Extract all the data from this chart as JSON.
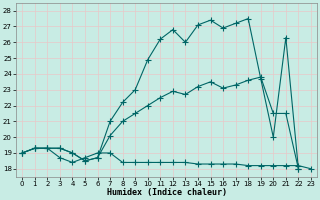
{
  "xlabel": "Humidex (Indice chaleur)",
  "xlim": [
    -0.5,
    23.5
  ],
  "ylim": [
    17.5,
    28.5
  ],
  "yticks": [
    18,
    19,
    20,
    21,
    22,
    23,
    24,
    25,
    26,
    27,
    28
  ],
  "xticks": [
    0,
    1,
    2,
    3,
    4,
    5,
    6,
    7,
    8,
    9,
    10,
    11,
    12,
    13,
    14,
    15,
    16,
    17,
    18,
    19,
    20,
    21,
    22,
    23
  ],
  "bg_color": "#c8ece4",
  "grid_color": "#b0d8d0",
  "line_color": "#006666",
  "line1_x": [
    0,
    1,
    2,
    3,
    4,
    5,
    6,
    7,
    8,
    9,
    10,
    11,
    12,
    13,
    14,
    15,
    16,
    17,
    18,
    19,
    20,
    21,
    22
  ],
  "line1_y": [
    19.0,
    19.3,
    19.3,
    19.3,
    19.0,
    18.5,
    18.7,
    21.0,
    22.2,
    23.0,
    24.9,
    26.2,
    26.8,
    26.0,
    27.1,
    27.4,
    26.9,
    27.2,
    27.5,
    23.7,
    20.0,
    26.3,
    18.0
  ],
  "line2_x": [
    0,
    1,
    2,
    3,
    4,
    5,
    6,
    7,
    8,
    9,
    10,
    11,
    12,
    13,
    14,
    15,
    16,
    17,
    18,
    19,
    20,
    21,
    22
  ],
  "line2_y": [
    19.0,
    19.3,
    19.3,
    19.3,
    19.0,
    18.5,
    18.7,
    20.1,
    21.0,
    21.5,
    22.0,
    22.5,
    22.9,
    22.7,
    23.2,
    23.5,
    23.1,
    23.3,
    23.6,
    23.8,
    21.5,
    21.5,
    18.0
  ],
  "line3_x": [
    0,
    1,
    2,
    3,
    4,
    5,
    6,
    7,
    8,
    9,
    10,
    11,
    12,
    13,
    14,
    15,
    16,
    17,
    18,
    19,
    20,
    21,
    22,
    23
  ],
  "line3_y": [
    19.0,
    19.3,
    19.3,
    18.7,
    18.4,
    18.7,
    19.0,
    19.0,
    18.4,
    18.4,
    18.4,
    18.4,
    18.4,
    18.4,
    18.3,
    18.3,
    18.3,
    18.3,
    18.2,
    18.2,
    18.2,
    18.2,
    18.2,
    18.0
  ]
}
